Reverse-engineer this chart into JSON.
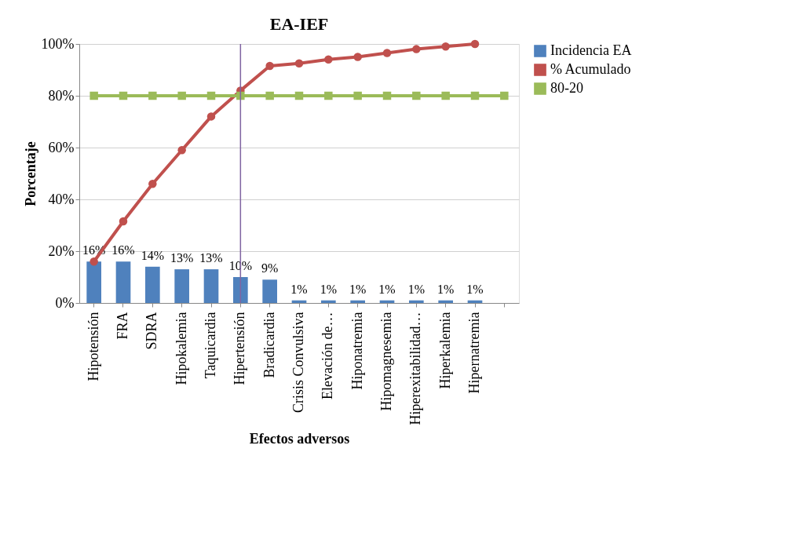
{
  "chart_data": {
    "type": "bar",
    "title": "EA-IEF",
    "xlabel": "Efectos adversos",
    "ylabel": "Porcentaje",
    "categories": [
      "Hipotensión",
      "FRA",
      "SDRA",
      "Hipokalemia",
      "Taquicardia",
      "Hipertensión",
      "Bradicardia",
      "Crisis Convulsiva",
      "Elevación de…",
      "Hiponatremia",
      "Hipomagnesemia",
      "Hiperexitabilidad…",
      "Hiperkalemia",
      "Hipernatremia",
      null
    ],
    "series": [
      {
        "name": "Incidencia EA",
        "color": "#4f81bd",
        "values": [
          16,
          16,
          14,
          13,
          13,
          10,
          9,
          1,
          1,
          1,
          1,
          1,
          1,
          1,
          null
        ],
        "value_labels": [
          "16%",
          "16%",
          "14%",
          "13%",
          "13%",
          "10%",
          "9%",
          "1%",
          "1%",
          "1%",
          "1%",
          "1%",
          "1%",
          "1%",
          null
        ]
      },
      {
        "name": "% Acumulado",
        "type": "line",
        "marker": "circle",
        "color": "#c0504d",
        "values": [
          16,
          31.5,
          46,
          59,
          72,
          82,
          91.5,
          92.5,
          94,
          95,
          96.5,
          98,
          99,
          100,
          null
        ]
      },
      {
        "name": "80-20",
        "type": "line",
        "marker": "square",
        "color": "#9bbb59",
        "values": [
          80,
          80,
          80,
          80,
          80,
          80,
          80,
          80,
          80,
          80,
          80,
          80,
          80,
          80,
          80
        ]
      }
    ],
    "ref_lines": [
      {
        "axis": "x",
        "value": "Hipertensión",
        "color": "#8064a2"
      }
    ],
    "ylim": [
      0,
      100
    ],
    "yticks": [
      {
        "value": 0,
        "label": "0%"
      },
      {
        "value": 20,
        "label": "20%"
      },
      {
        "value": 40,
        "label": "40%"
      },
      {
        "value": 60,
        "label": "60%"
      },
      {
        "value": 80,
        "label": "80%"
      },
      {
        "value": 100,
        "label": "100%"
      }
    ],
    "grid": "y",
    "legend": "right"
  }
}
